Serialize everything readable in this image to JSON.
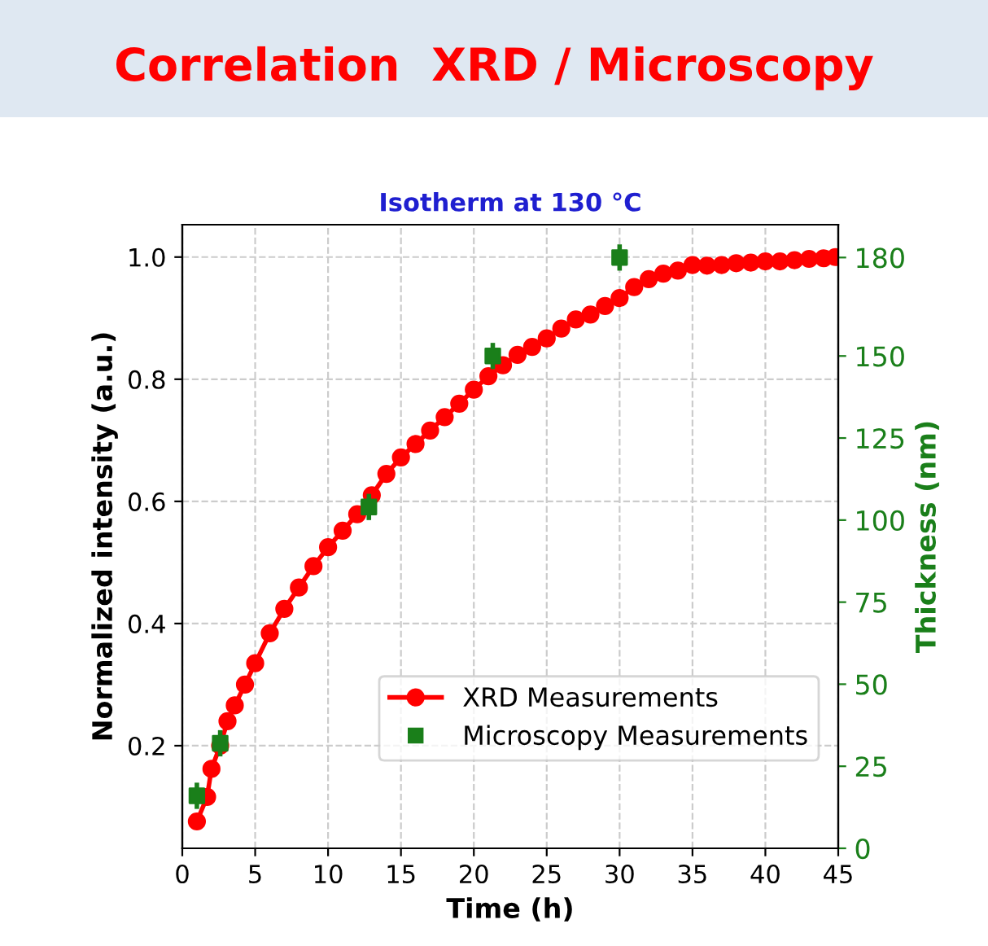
{
  "chart_data": {
    "type": "line",
    "title": "Correlation  XRD / Microscopy",
    "subtitle": "Isotherm at 130 °C",
    "xlabel": "Time (h)",
    "ylabel": "Normalized intensity (a.u.)",
    "y2label": "Thickness (nm)",
    "xlim": [
      0,
      45
    ],
    "xticks": [
      0,
      5,
      10,
      15,
      20,
      25,
      30,
      35,
      40,
      45
    ],
    "ylim": [
      0.032,
      1.053
    ],
    "yticks": [
      0.2,
      0.4,
      0.6,
      0.8,
      {
        "value": 1.0,
        "label": "1.0"
      }
    ],
    "y2lim": [
      0,
      190
    ],
    "y2ticks": [
      0,
      25,
      50,
      75,
      100,
      125,
      150,
      180
    ],
    "grid": true,
    "legend": "bottom right",
    "series": [
      {
        "name": "XRD Measurements",
        "color": "#ff0000",
        "marker": "circle",
        "line_style": "solid",
        "x": [
          1.0,
          1.7,
          2.0,
          2.6,
          3.1,
          3.6,
          4.3,
          5.0,
          6,
          7,
          8,
          9,
          10,
          11,
          12,
          13,
          14,
          15,
          16,
          17,
          18,
          19,
          20,
          21,
          22,
          23,
          24,
          25,
          26,
          27,
          28,
          29,
          30,
          31,
          32,
          33,
          34,
          35,
          36,
          37,
          38,
          39,
          40,
          41,
          42,
          43,
          44,
          44.8
        ],
        "values": [
          0.076,
          0.116,
          0.162,
          0.2,
          0.24,
          0.266,
          0.3,
          0.335,
          0.384,
          0.424,
          0.459,
          0.494,
          0.525,
          0.552,
          0.579,
          0.61,
          0.645,
          0.672,
          0.694,
          0.716,
          0.738,
          0.76,
          0.783,
          0.805,
          0.823,
          0.84,
          0.853,
          0.867,
          0.883,
          0.898,
          0.906,
          0.92,
          0.933,
          0.951,
          0.964,
          0.973,
          0.978,
          0.987,
          0.986,
          0.987,
          0.99,
          0.991,
          0.993,
          0.993,
          0.995,
          0.997,
          0.998,
          1.0
        ]
      },
      {
        "name": "Microscopy Measurements",
        "type": "scatter",
        "axis": "y2",
        "color": "#1a7f1a",
        "marker": "square",
        "x": [
          1.0,
          2.6,
          12.8,
          21.3,
          30.0
        ],
        "values": [
          16,
          32,
          104,
          150,
          180
        ],
        "errors": [
          4,
          4,
          4,
          4,
          4
        ]
      }
    ]
  }
}
